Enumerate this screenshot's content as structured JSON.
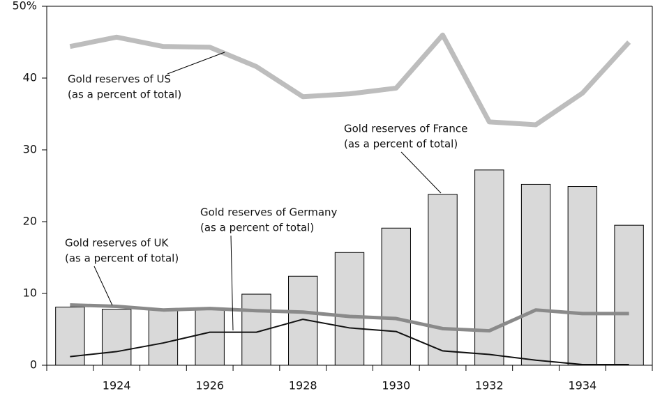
{
  "chart_data": {
    "type": "bar",
    "categories": [
      null,
      "1924",
      null,
      "1926",
      null,
      "1928",
      null,
      "1930",
      null,
      "1932",
      null,
      "1934",
      null
    ],
    "ylim": [
      0,
      50
    ],
    "yticks": [
      0,
      10,
      20,
      30,
      40,
      {
        "value": 50,
        "label": "50%"
      }
    ],
    "grid": false,
    "series": [
      {
        "name": "Gold reserves of France",
        "note": "(as a percent of total)",
        "type": "bar",
        "color": "#d9d9d9",
        "values": [
          8.1,
          7.8,
          7.7,
          7.8,
          9.9,
          12.4,
          15.7,
          19.1,
          23.8,
          27.2,
          25.2,
          24.9,
          19.5
        ]
      },
      {
        "name": "Gold reserves of US",
        "note": "(as a percent of total)",
        "type": "line",
        "color": "#bdbdbd",
        "width": 7,
        "values": [
          44.4,
          45.7,
          44.4,
          44.3,
          41.6,
          37.4,
          37.8,
          38.6,
          46.0,
          33.9,
          33.5,
          37.9,
          45.0
        ]
      },
      {
        "name": "Gold reserves of UK",
        "note": "(as a percent of total)",
        "type": "line",
        "color": "#8a8a8a",
        "width": 5,
        "values": [
          8.4,
          8.2,
          7.7,
          7.9,
          7.6,
          7.4,
          6.8,
          6.5,
          5.1,
          4.8,
          7.7,
          7.2,
          7.2
        ]
      },
      {
        "name": "Gold reserves of Germany",
        "note": "(as a percent of total)",
        "type": "line",
        "color": "#111111",
        "width": 2,
        "values": [
          1.2,
          1.9,
          3.1,
          4.6,
          4.6,
          6.4,
          5.2,
          4.7,
          2.0,
          1.5,
          0.7,
          0.1,
          0.1
        ]
      }
    ]
  }
}
